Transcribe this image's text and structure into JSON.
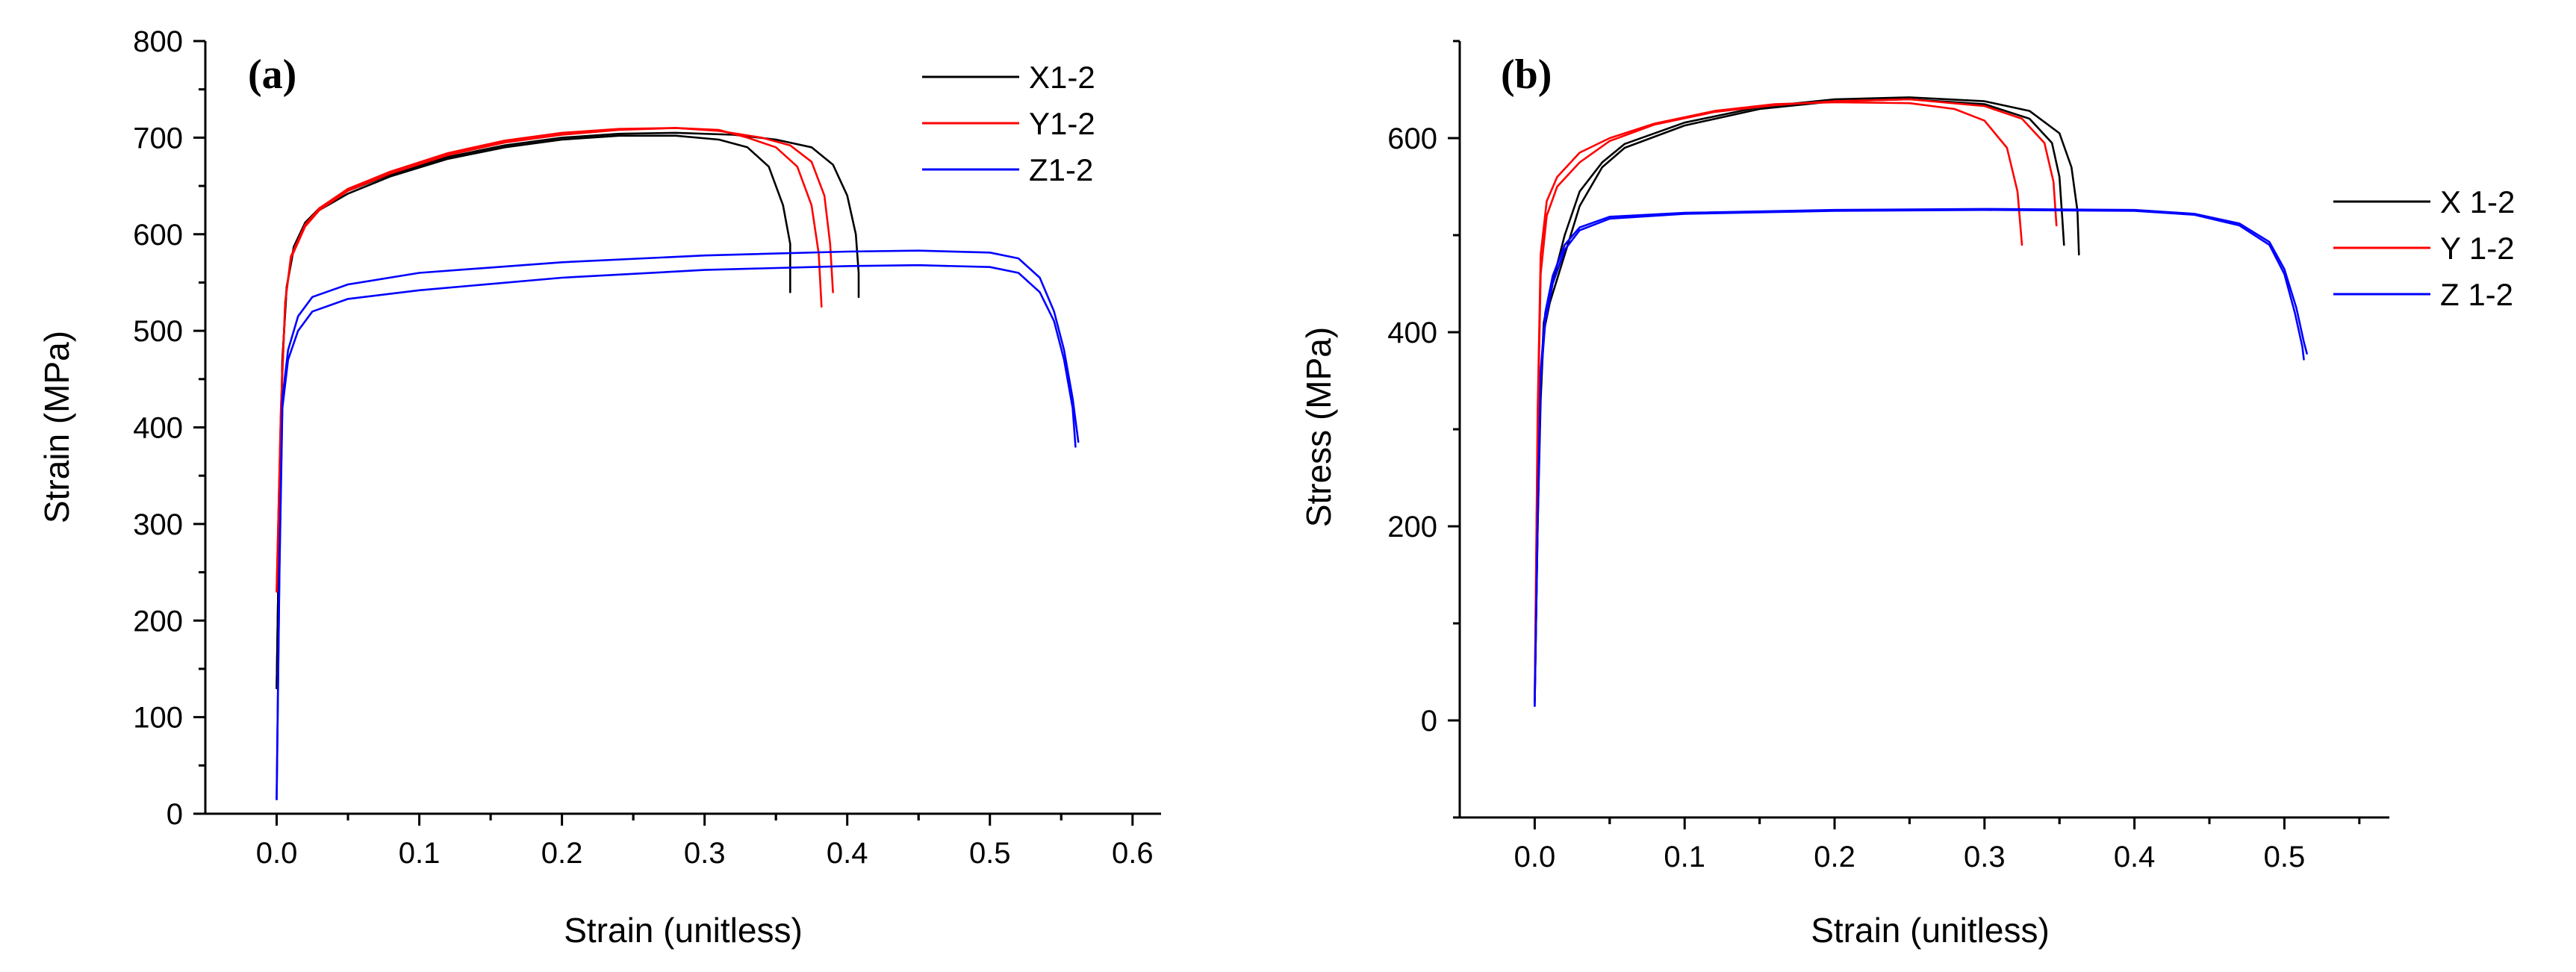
{
  "chart_data": [
    {
      "type": "line",
      "panel_label": "(a)",
      "title": "",
      "xlabel": "Strain (unitless)",
      "ylabel": "Strain (MPa)",
      "xlim": [
        -0.05,
        0.62
      ],
      "ylim": [
        0,
        800
      ],
      "xticks": [
        0.0,
        0.1,
        0.2,
        0.3,
        0.4,
        0.5,
        0.6
      ],
      "xtick_labels": [
        "0.0",
        "0.1",
        "0.2",
        "0.3",
        "0.4",
        "0.5",
        "0.6"
      ],
      "yticks": [
        0,
        100,
        200,
        300,
        400,
        500,
        600,
        700,
        800
      ],
      "ytick_labels": [
        "0",
        "100",
        "200",
        "300",
        "400",
        "500",
        "600",
        "700",
        "800"
      ],
      "legend_position": "top-right",
      "series": [
        {
          "name": "X1-2",
          "color": "#000000",
          "curves": [
            [
              [
                0,
                130
              ],
              [
                0.002,
                320
              ],
              [
                0.004,
                470
              ],
              [
                0.007,
                545
              ],
              [
                0.012,
                585
              ],
              [
                0.02,
                610
              ],
              [
                0.03,
                625
              ],
              [
                0.05,
                642
              ],
              [
                0.08,
                660
              ],
              [
                0.12,
                678
              ],
              [
                0.16,
                690
              ],
              [
                0.2,
                698
              ],
              [
                0.24,
                702
              ],
              [
                0.28,
                702
              ],
              [
                0.31,
                698
              ],
              [
                0.33,
                690
              ],
              [
                0.345,
                670
              ],
              [
                0.355,
                630
              ],
              [
                0.36,
                590
              ],
              [
                0.36,
                540
              ]
            ],
            [
              [
                0,
                130
              ],
              [
                0.002,
                320
              ],
              [
                0.004,
                470
              ],
              [
                0.007,
                545
              ],
              [
                0.012,
                587
              ],
              [
                0.02,
                612
              ],
              [
                0.03,
                627
              ],
              [
                0.05,
                645
              ],
              [
                0.08,
                662
              ],
              [
                0.12,
                680
              ],
              [
                0.16,
                692
              ],
              [
                0.2,
                700
              ],
              [
                0.24,
                704
              ],
              [
                0.28,
                705
              ],
              [
                0.32,
                703
              ],
              [
                0.35,
                698
              ],
              [
                0.375,
                690
              ],
              [
                0.39,
                672
              ],
              [
                0.4,
                640
              ],
              [
                0.406,
                600
              ],
              [
                0.408,
                560
              ],
              [
                0.408,
                535
              ]
            ]
          ]
        },
        {
          "name": "Y1-2",
          "color": "#ff0000",
          "curves": [
            [
              [
                0,
                230
              ],
              [
                0.003,
                420
              ],
              [
                0.006,
                530
              ],
              [
                0.01,
                575
              ],
              [
                0.02,
                608
              ],
              [
                0.03,
                625
              ],
              [
                0.05,
                645
              ],
              [
                0.08,
                663
              ],
              [
                0.12,
                682
              ],
              [
                0.16,
                695
              ],
              [
                0.2,
                703
              ],
              [
                0.24,
                708
              ],
              [
                0.28,
                710
              ],
              [
                0.31,
                708
              ],
              [
                0.33,
                700
              ],
              [
                0.35,
                690
              ],
              [
                0.365,
                670
              ],
              [
                0.375,
                630
              ],
              [
                0.38,
                580
              ],
              [
                0.382,
                525
              ]
            ],
            [
              [
                0,
                230
              ],
              [
                0.003,
                420
              ],
              [
                0.006,
                530
              ],
              [
                0.01,
                577
              ],
              [
                0.02,
                610
              ],
              [
                0.03,
                627
              ],
              [
                0.05,
                647
              ],
              [
                0.08,
                665
              ],
              [
                0.12,
                684
              ],
              [
                0.16,
                697
              ],
              [
                0.2,
                705
              ],
              [
                0.24,
                709
              ],
              [
                0.28,
                710
              ],
              [
                0.31,
                707
              ],
              [
                0.34,
                700
              ],
              [
                0.36,
                692
              ],
              [
                0.375,
                675
              ],
              [
                0.384,
                640
              ],
              [
                0.388,
                590
              ],
              [
                0.39,
                540
              ]
            ]
          ]
        },
        {
          "name": "Z1-2",
          "color": "#0000ff",
          "curves": [
            [
              [
                0,
                15
              ],
              [
                0.002,
                250
              ],
              [
                0.004,
                420
              ],
              [
                0.008,
                470
              ],
              [
                0.015,
                500
              ],
              [
                0.025,
                520
              ],
              [
                0.05,
                533
              ],
              [
                0.1,
                542
              ],
              [
                0.2,
                555
              ],
              [
                0.3,
                563
              ],
              [
                0.4,
                567
              ],
              [
                0.45,
                568
              ],
              [
                0.5,
                566
              ],
              [
                0.52,
                560
              ],
              [
                0.535,
                540
              ],
              [
                0.545,
                510
              ],
              [
                0.552,
                470
              ],
              [
                0.558,
                420
              ],
              [
                0.56,
                380
              ]
            ],
            [
              [
                0,
                15
              ],
              [
                0.002,
                260
              ],
              [
                0.004,
                430
              ],
              [
                0.008,
                480
              ],
              [
                0.015,
                515
              ],
              [
                0.025,
                535
              ],
              [
                0.05,
                548
              ],
              [
                0.1,
                560
              ],
              [
                0.2,
                571
              ],
              [
                0.3,
                578
              ],
              [
                0.4,
                582
              ],
              [
                0.45,
                583
              ],
              [
                0.5,
                581
              ],
              [
                0.52,
                575
              ],
              [
                0.535,
                555
              ],
              [
                0.545,
                520
              ],
              [
                0.552,
                480
              ],
              [
                0.558,
                430
              ],
              [
                0.562,
                385
              ]
            ]
          ]
        }
      ]
    },
    {
      "type": "line",
      "panel_label": "(b)",
      "title": "",
      "xlabel": "Strain (unitless)",
      "ylabel": "Stress (MPa)",
      "xlim": [
        -0.05,
        0.57
      ],
      "ylim": [
        -100,
        700
      ],
      "xticks": [
        0.0,
        0.1,
        0.2,
        0.3,
        0.4,
        0.5
      ],
      "xtick_labels": [
        "0.0",
        "0.1",
        "0.2",
        "0.3",
        "0.4",
        "0.5"
      ],
      "yticks": [
        0,
        200,
        400,
        600
      ],
      "ytick_labels": [
        "0",
        "200",
        "400",
        "600"
      ],
      "legend_position": "right",
      "series": [
        {
          "name": "X 1-2",
          "color": "#000000",
          "curves": [
            [
              [
                0,
                20
              ],
              [
                0.002,
                200
              ],
              [
                0.004,
                330
              ],
              [
                0.006,
                400
              ],
              [
                0.01,
                430
              ],
              [
                0.02,
                480
              ],
              [
                0.03,
                530
              ],
              [
                0.045,
                570
              ],
              [
                0.06,
                590
              ],
              [
                0.1,
                613
              ],
              [
                0.15,
                630
              ],
              [
                0.2,
                638
              ],
              [
                0.25,
                640
              ],
              [
                0.3,
                635
              ],
              [
                0.33,
                620
              ],
              [
                0.345,
                595
              ],
              [
                0.35,
                560
              ],
              [
                0.352,
                515
              ],
              [
                0.353,
                490
              ]
            ],
            [
              [
                0,
                20
              ],
              [
                0.002,
                210
              ],
              [
                0.004,
                340
              ],
              [
                0.006,
                410
              ],
              [
                0.01,
                440
              ],
              [
                0.02,
                500
              ],
              [
                0.03,
                545
              ],
              [
                0.045,
                575
              ],
              [
                0.06,
                594
              ],
              [
                0.1,
                616
              ],
              [
                0.15,
                632
              ],
              [
                0.2,
                640
              ],
              [
                0.25,
                642
              ],
              [
                0.3,
                638
              ],
              [
                0.33,
                628
              ],
              [
                0.35,
                605
              ],
              [
                0.358,
                570
              ],
              [
                0.362,
                525
              ],
              [
                0.363,
                480
              ]
            ]
          ]
        },
        {
          "name": "Y 1-2",
          "color": "#ff0000",
          "curves": [
            [
              [
                0,
                20
              ],
              [
                0.002,
                320
              ],
              [
                0.004,
                480
              ],
              [
                0.008,
                535
              ],
              [
                0.015,
                560
              ],
              [
                0.03,
                585
              ],
              [
                0.05,
                600
              ],
              [
                0.08,
                615
              ],
              [
                0.12,
                628
              ],
              [
                0.16,
                635
              ],
              [
                0.2,
                637
              ],
              [
                0.25,
                636
              ],
              [
                0.28,
                630
              ],
              [
                0.3,
                618
              ],
              [
                0.315,
                590
              ],
              [
                0.322,
                545
              ],
              [
                0.325,
                490
              ]
            ],
            [
              [
                0,
                20
              ],
              [
                0.002,
                300
              ],
              [
                0.004,
                460
              ],
              [
                0.008,
                520
              ],
              [
                0.015,
                550
              ],
              [
                0.03,
                575
              ],
              [
                0.05,
                597
              ],
              [
                0.08,
                614
              ],
              [
                0.12,
                627
              ],
              [
                0.16,
                634
              ],
              [
                0.2,
                638
              ],
              [
                0.25,
                640
              ],
              [
                0.3,
                633
              ],
              [
                0.325,
                620
              ],
              [
                0.34,
                595
              ],
              [
                0.346,
                555
              ],
              [
                0.348,
                510
              ]
            ]
          ]
        },
        {
          "name": "Z 1-2",
          "color": "#0000ff",
          "curves": [
            [
              [
                0,
                15
              ],
              [
                0.002,
                200
              ],
              [
                0.004,
                350
              ],
              [
                0.007,
                410
              ],
              [
                0.012,
                450
              ],
              [
                0.02,
                485
              ],
              [
                0.03,
                505
              ],
              [
                0.05,
                517
              ],
              [
                0.1,
                522
              ],
              [
                0.2,
                525
              ],
              [
                0.3,
                526
              ],
              [
                0.4,
                525
              ],
              [
                0.44,
                521
              ],
              [
                0.47,
                510
              ],
              [
                0.49,
                490
              ],
              [
                0.5,
                460
              ],
              [
                0.507,
                420
              ],
              [
                0.512,
                385
              ],
              [
                0.513,
                372
              ]
            ],
            [
              [
                0,
                15
              ],
              [
                0.002,
                210
              ],
              [
                0.004,
                360
              ],
              [
                0.007,
                420
              ],
              [
                0.012,
                458
              ],
              [
                0.02,
                490
              ],
              [
                0.03,
                508
              ],
              [
                0.05,
                519
              ],
              [
                0.1,
                523
              ],
              [
                0.2,
                526
              ],
              [
                0.3,
                527
              ],
              [
                0.4,
                526
              ],
              [
                0.44,
                522
              ],
              [
                0.47,
                512
              ],
              [
                0.49,
                493
              ],
              [
                0.5,
                465
              ],
              [
                0.508,
                425
              ],
              [
                0.513,
                390
              ],
              [
                0.515,
                378
              ]
            ]
          ]
        }
      ]
    }
  ]
}
